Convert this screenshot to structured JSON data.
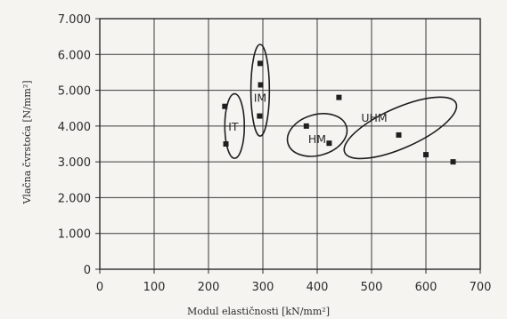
{
  "chart_data": {
    "type": "scatter",
    "xlabel": "Modul elastičnosti [kN/mm²]",
    "ylabel": "Vlačna čvrstoća [N/mm²]",
    "xlim": [
      0,
      700
    ],
    "ylim": [
      0,
      7000
    ],
    "x_ticks": [
      0,
      100,
      200,
      300,
      400,
      500,
      600,
      700
    ],
    "y_ticks": [
      0,
      1000,
      2000,
      3000,
      4000,
      5000,
      6000,
      7000
    ],
    "x_tick_labels": [
      "0",
      "100",
      "200",
      "300",
      "400",
      "500",
      "600",
      "700"
    ],
    "y_tick_labels": [
      "0",
      "1.000",
      "2.000",
      "3.000",
      "4.000",
      "5.000",
      "6.000",
      "7.000"
    ],
    "grid": true,
    "points": [
      {
        "x": 230,
        "y": 4550
      },
      {
        "x": 232,
        "y": 3500
      },
      {
        "x": 295,
        "y": 5750
      },
      {
        "x": 296,
        "y": 5150
      },
      {
        "x": 294,
        "y": 4280
      },
      {
        "x": 380,
        "y": 4000
      },
      {
        "x": 422,
        "y": 3520
      },
      {
        "x": 440,
        "y": 4800
      },
      {
        "x": 550,
        "y": 3750
      },
      {
        "x": 600,
        "y": 3200
      },
      {
        "x": 650,
        "y": 3000
      }
    ],
    "groups": [
      {
        "label": "HT",
        "center": [
          248,
          4000
        ],
        "rx": 18,
        "ry": 900,
        "angle": 0,
        "label_pos": [
          241,
          4000
        ]
      },
      {
        "label": "IM",
        "center": [
          295,
          5000
        ],
        "rx": 17,
        "ry": 1280,
        "angle": 0,
        "label_pos": [
          295,
          4800
        ]
      },
      {
        "label": "HM",
        "center": [
          400,
          3750
        ],
        "rx": 56,
        "ry": 570,
        "angle": 16,
        "label_pos": [
          400,
          3650
        ]
      },
      {
        "label": "UHM",
        "center": [
          553,
          3950
        ],
        "rx": 112,
        "ry": 560,
        "angle": 24,
        "label_pos": [
          505,
          4250
        ]
      }
    ]
  }
}
